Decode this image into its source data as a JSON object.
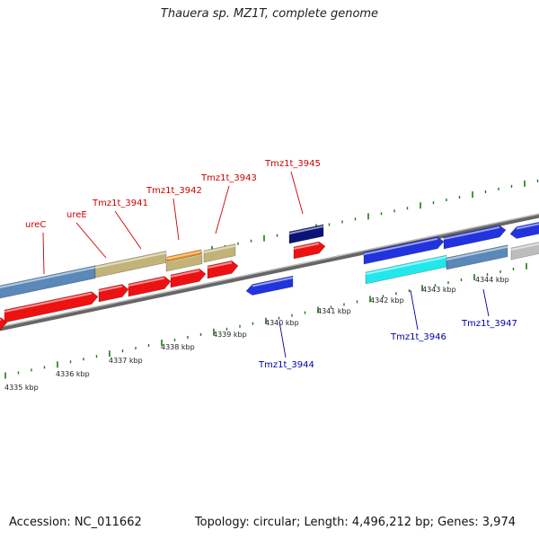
{
  "title": "Thauera sp. MZ1T, complete genome",
  "footer": {
    "accession": "Accession: NC_011662",
    "summary": "Topology: circular; Length: 4,496,212 bp; Genes: 3,974"
  },
  "colors": {
    "cds_red": "#ee1111",
    "cds_blue": "#2233dd",
    "steelblue": "#5a88b8",
    "khaki": "#c2b478",
    "orange": "#ee8811",
    "cyan": "#22e8ee",
    "navy": "#0a1477",
    "gray": "#bdbdbd",
    "tick": "#1a7a1a",
    "label_red": "#cc0000",
    "label_blue": "#0000aa"
  },
  "genome_map": {
    "upper_ruler_labels": [],
    "lower_ruler_labels": [
      "4335 kbp",
      "4336 kbp",
      "4337 kbp",
      "4338 kbp",
      "4339 kbp",
      "4340 kbp",
      "4341 kbp",
      "4342 kbp",
      "4343 kbp",
      "4344 kbp"
    ],
    "top_gene_labels": [
      "ureC",
      "ureE",
      "Tmz1t_3941",
      "Tmz1t_3942",
      "Tmz1t_3943",
      "Tmz1t_3945"
    ],
    "bottom_gene_labels": [
      "Tmz1t_3944",
      "Tmz1t_3946",
      "Tmz1t_3947"
    ]
  }
}
